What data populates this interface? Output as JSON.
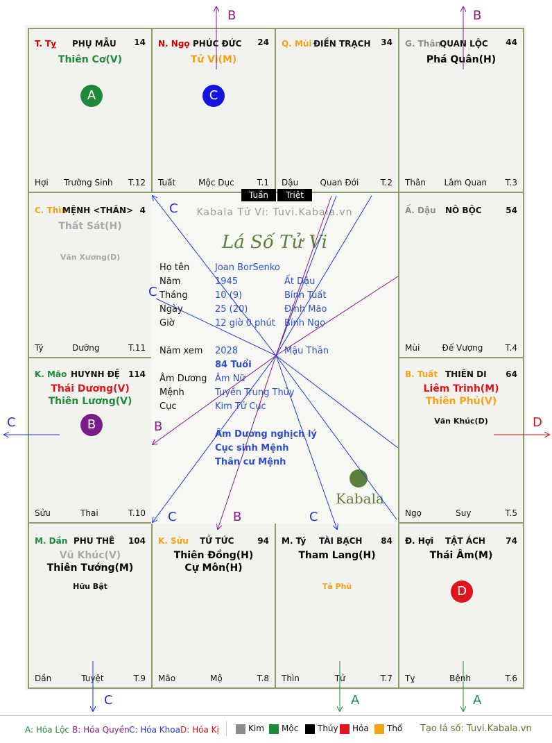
{
  "watermark": "Kabala Tử Vi: Tuvi.Kabala.vn",
  "title_script": "Lá Số Tử Vi",
  "logo_text": "Kabala",
  "tuan": "Tuần",
  "triet": "Triệt",
  "cells": {
    "ty_top": {
      "can": "T. Tỵ",
      "name": "PHỤ MẪU",
      "num": "14",
      "stars": [
        "Thiên Cơ(V)"
      ],
      "foot": [
        "Hợi",
        "Trường Sinh",
        "T.12"
      ],
      "badge": "A"
    },
    "ngo": {
      "can": "N. Ngọ",
      "name": "PHÚC ĐỨC",
      "num": "24",
      "stars": [
        "Tử Vi(M)"
      ],
      "foot": [
        "Tuất",
        "Mộc Dục",
        "T.1"
      ],
      "badge": "C"
    },
    "mui_top": {
      "can": "Q. Mùi",
      "name": "ĐIỀN TRẠCH",
      "num": "34",
      "stars": [],
      "foot": [
        "Dậu",
        "Quan Đới",
        "T.2"
      ]
    },
    "than_top": {
      "can": "G. Thân",
      "name": "QUAN LỘC",
      "num": "44",
      "stars": [
        "Phá Quân(H)"
      ],
      "foot": [
        "Thân",
        "Lâm Quan",
        "T.3"
      ]
    },
    "thin_left": {
      "can": "C. Thìn",
      "name": "MỆNH <THÂN>",
      "num": "4",
      "stars": [
        "Thất Sát(H)"
      ],
      "sub": "Văn Xương(D)",
      "foot": [
        "Tý",
        "Dưỡng",
        "T.11"
      ]
    },
    "dau_right": {
      "can": "Ấ. Dậu",
      "name": "NÔ BỘC",
      "num": "54",
      "stars": [],
      "foot": [
        "Mùi",
        "Đế Vượng",
        "T.4"
      ]
    },
    "mao": {
      "can": "K. Mão",
      "name": "HUYNH ĐỆ",
      "num": "114",
      "stars": [
        "Thái Dương(V)",
        "Thiên Lương(V)"
      ],
      "foot": [
        "Sửu",
        "Thai",
        "T.10"
      ],
      "badge": "B"
    },
    "tuat": {
      "can": "B. Tuất",
      "name": "THIÊN DI",
      "num": "64",
      "stars": [
        "Liêm Trinh(M)",
        "Thiên Phủ(V)"
      ],
      "sub": "Văn Khúc(D)",
      "foot": [
        "Ngọ",
        "Suy",
        "T.5"
      ]
    },
    "dan": {
      "can": "M. Dần",
      "name": "PHU THÊ",
      "num": "104",
      "stars": [
        "Vũ Khúc(V)",
        "Thiên Tướng(M)"
      ],
      "sub": "Hữu Bật",
      "foot": [
        "Dần",
        "Tuyệt",
        "T.9"
      ]
    },
    "suu": {
      "can": "K. Sửu",
      "name": "TỬ TỨC",
      "num": "94",
      "stars": [
        "Thiên Đồng(H)",
        "Cự Môn(H)"
      ],
      "foot": [
        "Mão",
        "Mộ",
        "T.8"
      ]
    },
    "ty_bottom": {
      "can": "M. Tý",
      "name": "TÀI BẠCH",
      "num": "84",
      "stars": [
        "Tham Lang(H)"
      ],
      "sub": "Tả Phù",
      "foot": [
        "Thìn",
        "Tử",
        "T.7"
      ]
    },
    "hoi": {
      "can": "Đ. Hợi",
      "name": "TẬT ÁCH",
      "num": "74",
      "stars": [
        "Thái Âm(M)"
      ],
      "foot": [
        "Tỵ",
        "Bệnh",
        "T.6"
      ],
      "badge": "D"
    }
  },
  "info": [
    {
      "label": "Họ tên",
      "v1": "Joan BorSenko",
      "v2": ""
    },
    {
      "label": "Năm",
      "v1": "1945",
      "v2": "Ất Dậu"
    },
    {
      "label": "Tháng",
      "v1": "10 (9)",
      "v2": "Bính Tuất"
    },
    {
      "label": "Ngày",
      "v1": "25  (20)",
      "v2": "Đinh Mão"
    },
    {
      "label": "Giờ",
      "v1": "12 giờ 0 phút",
      "v2": "Bính Ngọ"
    },
    {
      "label": "Năm xem",
      "v1": "2028",
      "v2": "Mậu Thân"
    },
    {
      "label": "",
      "v1": "84 Tuổi",
      "v2": ""
    },
    {
      "label": "Âm Dương",
      "v1": "Âm Nữ",
      "v2": ""
    },
    {
      "label": "Mệnh",
      "v1": "Tuyền Trung Thủy",
      "v2": ""
    },
    {
      "label": "Cục",
      "v1": "Kim Tứ Cục",
      "v2": ""
    }
  ],
  "notes": [
    "Âm Dương nghịch lý",
    "Cục sinh Mệnh",
    "Thân cư Mệnh"
  ],
  "arrow_letters": [
    "B",
    "B",
    "C",
    "D",
    "C",
    "A",
    "A"
  ],
  "line_letters": [
    "C",
    "C",
    "B",
    "C",
    "B",
    "C"
  ],
  "legend": {
    "hoa_loc": "A: Hóa Lộc",
    "hoa_quyen": "B: Hóa Quyền",
    "hoa_khoa": "C: Hóa Khoa",
    "hoa_ki": "D: Hóa Kị",
    "elements": [
      {
        "label": "Kim",
        "color": "#8c8c8c"
      },
      {
        "label": "Mộc",
        "color": "#1f8a3a"
      },
      {
        "label": "Thủy",
        "color": "#000000"
      },
      {
        "label": "Hỏa",
        "color": "#e0141b"
      },
      {
        "label": "Thổ",
        "color": "#f5a316"
      }
    ],
    "site": "Tạo lá số: Tuvi.Kabala.vn"
  },
  "colors": {
    "kim": "#8c8c8c",
    "moc": "#1f8a3a",
    "thuy": "#000000",
    "hoa": "#e0141b",
    "tho": "#f5a316",
    "line_c": "#2234d6",
    "line_b": "#8a1a8a",
    "line_d": "#d0141b",
    "line_a": "#1f8a3a"
  }
}
